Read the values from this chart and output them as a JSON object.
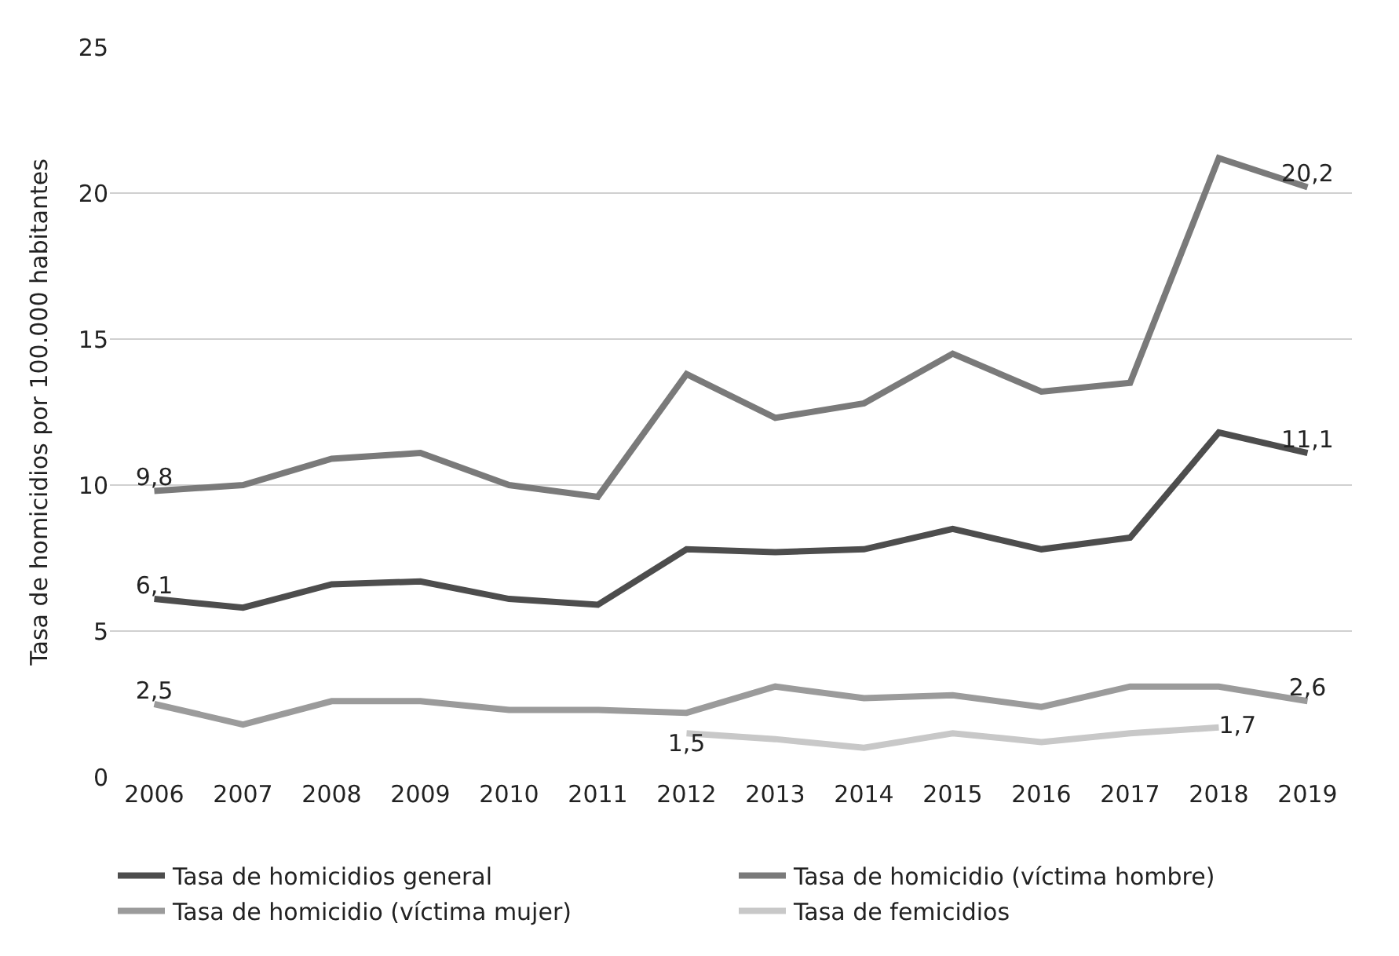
{
  "chart_data": {
    "type": "line",
    "ylabel": "Tasa de homicidios por 100.000 habitantes",
    "categories": [
      "2006",
      "2007",
      "2008",
      "2009",
      "2010",
      "2011",
      "2012",
      "2013",
      "2014",
      "2015",
      "2016",
      "2017",
      "2018",
      "2019"
    ],
    "series": [
      {
        "name": "Tasa de homicidios general",
        "color": "#4d4d4d",
        "values": [
          6.1,
          5.8,
          6.6,
          6.7,
          6.1,
          5.9,
          7.8,
          7.7,
          7.8,
          8.5,
          7.8,
          8.2,
          11.8,
          11.1
        ],
        "value_labels": [
          "6,1",
          null,
          null,
          null,
          null,
          null,
          null,
          null,
          null,
          null,
          null,
          null,
          null,
          "11,1"
        ]
      },
      {
        "name": "Tasa de homicidio (víctima hombre)",
        "color": "#7a7a7a",
        "values": [
          9.8,
          10.0,
          10.9,
          11.1,
          10.0,
          9.6,
          13.8,
          12.3,
          12.8,
          14.5,
          13.2,
          13.5,
          21.2,
          20.2
        ],
        "value_labels": [
          "9,8",
          null,
          null,
          null,
          null,
          null,
          null,
          null,
          null,
          null,
          null,
          null,
          null,
          "20,2"
        ]
      },
      {
        "name": "Tasa de homicidio (víctima mujer)",
        "color": "#9b9b9b",
        "values": [
          2.5,
          1.8,
          2.6,
          2.6,
          2.3,
          2.3,
          2.2,
          3.1,
          2.7,
          2.8,
          2.4,
          3.1,
          3.1,
          2.6
        ],
        "value_labels": [
          "2,5",
          null,
          null,
          null,
          null,
          null,
          null,
          null,
          null,
          null,
          null,
          null,
          null,
          "2,6"
        ]
      },
      {
        "name": "Tasa de femicidios",
        "color": "#c8c8c8",
        "values": [
          null,
          null,
          null,
          null,
          null,
          null,
          1.5,
          1.3,
          1.0,
          1.5,
          1.2,
          1.5,
          1.7,
          null
        ],
        "value_labels": [
          null,
          null,
          null,
          null,
          null,
          null,
          "1,5",
          null,
          null,
          null,
          null,
          null,
          "1,7",
          null
        ]
      }
    ],
    "ylim": [
      0,
      25
    ],
    "yticks": [
      0,
      5,
      10,
      15,
      20,
      25
    ],
    "grid": "y",
    "legend": "bottom",
    "marker": "none",
    "line_style": "solid"
  }
}
